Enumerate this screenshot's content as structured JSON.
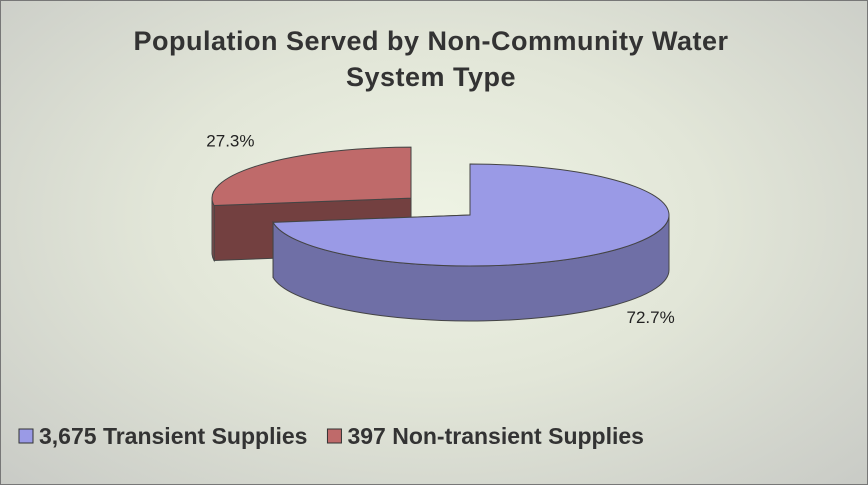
{
  "chart_data": {
    "type": "pie3d",
    "title": "Population Served by Non-Community Water System Type",
    "categories": [
      "3,675 Transient Supplies",
      "397 Non-transient Supplies"
    ],
    "values": [
      72.7,
      27.3
    ],
    "value_labels": [
      "72.7%",
      "27.3%"
    ],
    "colors": [
      "#9a9ae6",
      "#bf6a6a"
    ],
    "legend": "bottom"
  }
}
